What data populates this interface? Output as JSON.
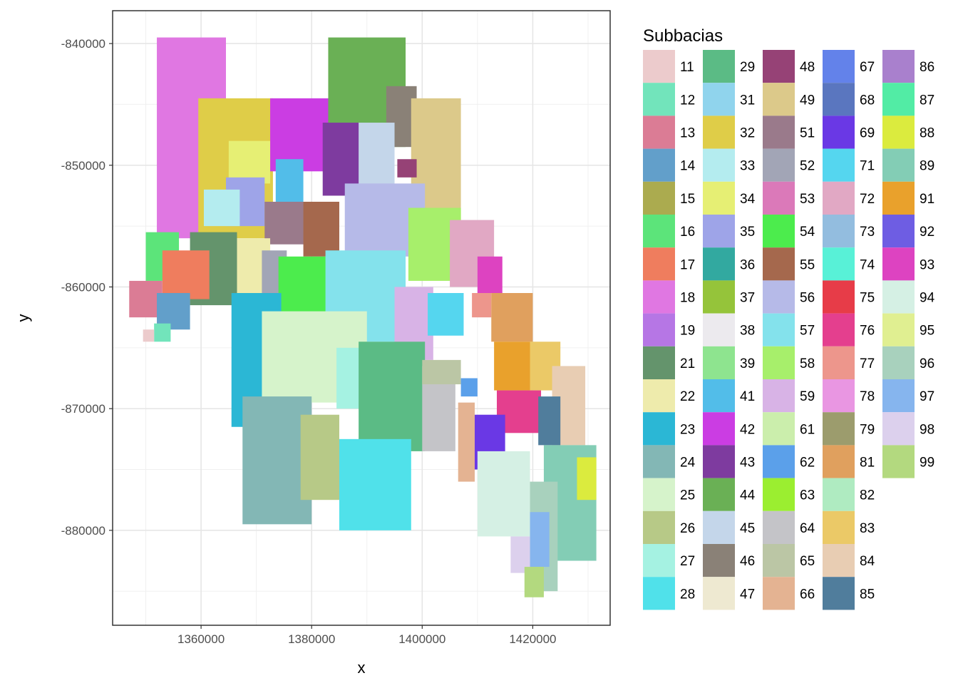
{
  "chart_data": {
    "type": "raster-map",
    "xlabel": "x",
    "ylabel": "y",
    "xlim": [
      1344000,
      1434000
    ],
    "ylim": [
      -887800,
      -837300
    ],
    "x_ticks": [
      1360000,
      1380000,
      1400000,
      1420000
    ],
    "x_tick_labels": [
      "1360000",
      "1380000",
      "1400000",
      "1420000"
    ],
    "y_ticks": [
      -840000,
      -850000,
      -860000,
      -870000,
      -880000
    ],
    "y_tick_labels": [
      "-840000",
      "-850000",
      "-860000",
      "-870000",
      "-880000"
    ],
    "grid": true,
    "legend": {
      "title": "Subbacias",
      "placement": "right",
      "columns": 5,
      "entries": [
        {
          "label": "11",
          "color": "#eccbcc"
        },
        {
          "label": "12",
          "color": "#72e4bb"
        },
        {
          "label": "13",
          "color": "#db7c95"
        },
        {
          "label": "14",
          "color": "#629fca"
        },
        {
          "label": "15",
          "color": "#abab4f"
        },
        {
          "label": "16",
          "color": "#5ce47a"
        },
        {
          "label": "17",
          "color": "#ef7d5e"
        },
        {
          "label": "18",
          "color": "#e077e2"
        },
        {
          "label": "19",
          "color": "#b676e5"
        },
        {
          "label": "21",
          "color": "#64946c"
        },
        {
          "label": "22",
          "color": "#eeebac"
        },
        {
          "label": "23",
          "color": "#2bb7d5"
        },
        {
          "label": "24",
          "color": "#83b7b5"
        },
        {
          "label": "25",
          "color": "#d6f3cb"
        },
        {
          "label": "26",
          "color": "#b7c987"
        },
        {
          "label": "27",
          "color": "#a5f2e2"
        },
        {
          "label": "28",
          "color": "#50e1ea"
        },
        {
          "label": "29",
          "color": "#5bbb85"
        },
        {
          "label": "31",
          "color": "#90d4ed"
        },
        {
          "label": "32",
          "color": "#dfcd48"
        },
        {
          "label": "33",
          "color": "#b4ecef"
        },
        {
          "label": "34",
          "color": "#e6ef74"
        },
        {
          "label": "35",
          "color": "#9ea4e8"
        },
        {
          "label": "36",
          "color": "#32a9a0"
        },
        {
          "label": "37",
          "color": "#95c43a"
        },
        {
          "label": "38",
          "color": "#eceaee"
        },
        {
          "label": "39",
          "color": "#8ee48f"
        },
        {
          "label": "41",
          "color": "#52bde9"
        },
        {
          "label": "42",
          "color": "#cb3de3"
        },
        {
          "label": "43",
          "color": "#7e3b9f"
        },
        {
          "label": "44",
          "color": "#6ab055"
        },
        {
          "label": "45",
          "color": "#c4d6ea"
        },
        {
          "label": "46",
          "color": "#8a8177"
        },
        {
          "label": "47",
          "color": "#eee9d1"
        },
        {
          "label": "48",
          "color": "#964276"
        },
        {
          "label": "49",
          "color": "#dcc98a"
        },
        {
          "label": "51",
          "color": "#9a7a8b"
        },
        {
          "label": "52",
          "color": "#a2a5b6"
        },
        {
          "label": "53",
          "color": "#db79b9"
        },
        {
          "label": "54",
          "color": "#4cec4d"
        },
        {
          "label": "55",
          "color": "#a5684d"
        },
        {
          "label": "56",
          "color": "#b6bae8"
        },
        {
          "label": "57",
          "color": "#84e2ec"
        },
        {
          "label": "58",
          "color": "#a7ef6b"
        },
        {
          "label": "59",
          "color": "#d8b3e6"
        },
        {
          "label": "61",
          "color": "#cbeeac"
        },
        {
          "label": "62",
          "color": "#5ba0ea"
        },
        {
          "label": "63",
          "color": "#9bee30"
        },
        {
          "label": "64",
          "color": "#c4c4c8"
        },
        {
          "label": "65",
          "color": "#bbc6a5"
        },
        {
          "label": "66",
          "color": "#e4b392"
        },
        {
          "label": "67",
          "color": "#6382ea"
        },
        {
          "label": "68",
          "color": "#5a76bf"
        },
        {
          "label": "69",
          "color": "#6a38e5"
        },
        {
          "label": "71",
          "color": "#55d6ef"
        },
        {
          "label": "72",
          "color": "#e1a8c4"
        },
        {
          "label": "73",
          "color": "#93bddf"
        },
        {
          "label": "74",
          "color": "#58f1d7"
        },
        {
          "label": "75",
          "color": "#e73c48"
        },
        {
          "label": "76",
          "color": "#e43f8e"
        },
        {
          "label": "77",
          "color": "#ed968c"
        },
        {
          "label": "78",
          "color": "#e996e2"
        },
        {
          "label": "79",
          "color": "#9c9c6d"
        },
        {
          "label": "81",
          "color": "#e0a05e"
        },
        {
          "label": "82",
          "color": "#afebc1"
        },
        {
          "label": "83",
          "color": "#ebc967"
        },
        {
          "label": "84",
          "color": "#e8cdb3"
        },
        {
          "label": "85",
          "color": "#507d9c"
        },
        {
          "label": "86",
          "color": "#a980cd"
        },
        {
          "label": "87",
          "color": "#52eca5"
        },
        {
          "label": "88",
          "color": "#dbeb3e"
        },
        {
          "label": "89",
          "color": "#83cdb5"
        },
        {
          "label": "91",
          "color": "#e9a12c"
        },
        {
          "label": "92",
          "color": "#6e5de3"
        },
        {
          "label": "93",
          "color": "#dd43c1"
        },
        {
          "label": "94",
          "color": "#d5f0e4"
        },
        {
          "label": "95",
          "color": "#e0ef91"
        },
        {
          "label": "96",
          "color": "#a8d1bd"
        },
        {
          "label": "97",
          "color": "#86b5ee"
        },
        {
          "label": "98",
          "color": "#dcd0ed"
        },
        {
          "label": "99",
          "color": "#b3d97f"
        }
      ]
    },
    "regions": [
      {
        "id": "18",
        "x": [
          1352000,
          1364500
        ],
        "y": [
          -856000,
          -839500
        ]
      },
      {
        "id": "32",
        "x": [
          1359500,
          1373000
        ],
        "y": [
          -856000,
          -844500
        ]
      },
      {
        "id": "42",
        "x": [
          1372500,
          1385000
        ],
        "y": [
          -850500,
          -844500
        ]
      },
      {
        "id": "44",
        "x": [
          1383000,
          1397000
        ],
        "y": [
          -848500,
          -839500
        ]
      },
      {
        "id": "46",
        "x": [
          1393500,
          1399000
        ],
        "y": [
          -848500,
          -843500
        ]
      },
      {
        "id": "49",
        "x": [
          1398000,
          1407000
        ],
        "y": [
          -856000,
          -844500
        ]
      },
      {
        "id": "43",
        "x": [
          1382000,
          1391500
        ],
        "y": [
          -852500,
          -846500
        ]
      },
      {
        "id": "45",
        "x": [
          1388500,
          1395000
        ],
        "y": [
          -852500,
          -846500
        ]
      },
      {
        "id": "48",
        "x": [
          1395500,
          1399000
        ],
        "y": [
          -851000,
          -849500
        ]
      },
      {
        "id": "34",
        "x": [
          1365000,
          1372500
        ],
        "y": [
          -851500,
          -848000
        ]
      },
      {
        "id": "35",
        "x": [
          1364500,
          1371500
        ],
        "y": [
          -855000,
          -851000
        ]
      },
      {
        "id": "33",
        "x": [
          1360500,
          1367000
        ],
        "y": [
          -855000,
          -852000
        ]
      },
      {
        "id": "41",
        "x": [
          1373500,
          1378500
        ],
        "y": [
          -853000,
          -849500
        ]
      },
      {
        "id": "51",
        "x": [
          1371500,
          1381500
        ],
        "y": [
          -856500,
          -853000
        ]
      },
      {
        "id": "55",
        "x": [
          1378500,
          1385000
        ],
        "y": [
          -857500,
          -853000
        ]
      },
      {
        "id": "56",
        "x": [
          1386000,
          1400500
        ],
        "y": [
          -857500,
          -851500
        ]
      },
      {
        "id": "58",
        "x": [
          1397500,
          1407000
        ],
        "y": [
          -859500,
          -853500
        ]
      },
      {
        "id": "72",
        "x": [
          1405000,
          1413000
        ],
        "y": [
          -860000,
          -854500
        ]
      },
      {
        "id": "21",
        "x": [
          1358000,
          1366500
        ],
        "y": [
          -861500,
          -855500
        ]
      },
      {
        "id": "16",
        "x": [
          1350000,
          1356000
        ],
        "y": [
          -859500,
          -855500
        ]
      },
      {
        "id": "17",
        "x": [
          1353000,
          1361500
        ],
        "y": [
          -861000,
          -857000
        ]
      },
      {
        "id": "13",
        "x": [
          1347000,
          1353000
        ],
        "y": [
          -862500,
          -859500
        ]
      },
      {
        "id": "14",
        "x": [
          1352000,
          1358000
        ],
        "y": [
          -863500,
          -860500
        ]
      },
      {
        "id": "12",
        "x": [
          1351500,
          1354500
        ],
        "y": [
          -864500,
          -863000
        ]
      },
      {
        "id": "11",
        "x": [
          1349500,
          1351500
        ],
        "y": [
          -864500,
          -863500
        ]
      },
      {
        "id": "22",
        "x": [
          1366500,
          1372500
        ],
        "y": [
          -861500,
          -856000
        ]
      },
      {
        "id": "52",
        "x": [
          1371000,
          1375500
        ],
        "y": [
          -861000,
          -857000
        ]
      },
      {
        "id": "54",
        "x": [
          1374000,
          1383000
        ],
        "y": [
          -863500,
          -857500
        ]
      },
      {
        "id": "57",
        "x": [
          1382500,
          1397000
        ],
        "y": [
          -864500,
          -857000
        ]
      },
      {
        "id": "59",
        "x": [
          1395000,
          1402000
        ],
        "y": [
          -866000,
          -860000
        ]
      },
      {
        "id": "71",
        "x": [
          1401000,
          1407500
        ],
        "y": [
          -864000,
          -860500
        ]
      },
      {
        "id": "93",
        "x": [
          1410000,
          1414500
        ],
        "y": [
          -860500,
          -857500
        ]
      },
      {
        "id": "77",
        "x": [
          1409000,
          1412500
        ],
        "y": [
          -862500,
          -860500
        ]
      },
      {
        "id": "81",
        "x": [
          1412500,
          1420000
        ],
        "y": [
          -864500,
          -860500
        ]
      },
      {
        "id": "23",
        "x": [
          1365500,
          1374500
        ],
        "y": [
          -871500,
          -860500
        ]
      },
      {
        "id": "25",
        "x": [
          1371000,
          1390000
        ],
        "y": [
          -869500,
          -862000
        ]
      },
      {
        "id": "27",
        "x": [
          1384500,
          1392000
        ],
        "y": [
          -870000,
          -865000
        ]
      },
      {
        "id": "29",
        "x": [
          1388500,
          1400500
        ],
        "y": [
          -873500,
          -864500
        ]
      },
      {
        "id": "64",
        "x": [
          1400000,
          1406000
        ],
        "y": [
          -873500,
          -866500
        ]
      },
      {
        "id": "65",
        "x": [
          1400000,
          1407000
        ],
        "y": [
          -868000,
          -866000
        ]
      },
      {
        "id": "91",
        "x": [
          1413000,
          1420000
        ],
        "y": [
          -868500,
          -864500
        ]
      },
      {
        "id": "83",
        "x": [
          1419500,
          1425000
        ],
        "y": [
          -868500,
          -864500
        ]
      },
      {
        "id": "84",
        "x": [
          1423500,
          1429500
        ],
        "y": [
          -873000,
          -866500
        ]
      },
      {
        "id": "76",
        "x": [
          1413500,
          1421500
        ],
        "y": [
          -872000,
          -868500
        ]
      },
      {
        "id": "62",
        "x": [
          1407000,
          1410000
        ],
        "y": [
          -869000,
          -867500
        ]
      },
      {
        "id": "69",
        "x": [
          1409000,
          1415000
        ],
        "y": [
          -875000,
          -870500
        ]
      },
      {
        "id": "66",
        "x": [
          1406500,
          1409500
        ],
        "y": [
          -876000,
          -869500
        ]
      },
      {
        "id": "85",
        "x": [
          1421000,
          1425000
        ],
        "y": [
          -873000,
          -869000
        ]
      },
      {
        "id": "24",
        "x": [
          1367500,
          1380000
        ],
        "y": [
          -879500,
          -869000
        ]
      },
      {
        "id": "26",
        "x": [
          1378000,
          1385000
        ],
        "y": [
          -877500,
          -870500
        ]
      },
      {
        "id": "28",
        "x": [
          1385000,
          1398000
        ],
        "y": [
          -880000,
          -872500
        ]
      },
      {
        "id": "94",
        "x": [
          1410000,
          1419500
        ],
        "y": [
          -880500,
          -873500
        ]
      },
      {
        "id": "89",
        "x": [
          1422000,
          1431500
        ],
        "y": [
          -882500,
          -873000
        ]
      },
      {
        "id": "88",
        "x": [
          1428000,
          1431500
        ],
        "y": [
          -877500,
          -874000
        ]
      },
      {
        "id": "96",
        "x": [
          1419500,
          1424500
        ],
        "y": [
          -885000,
          -876000
        ]
      },
      {
        "id": "97",
        "x": [
          1419500,
          1423000
        ],
        "y": [
          -883000,
          -878500
        ]
      },
      {
        "id": "98",
        "x": [
          1416000,
          1419500
        ],
        "y": [
          -883500,
          -880500
        ]
      },
      {
        "id": "99",
        "x": [
          1418500,
          1422000
        ],
        "y": [
          -885500,
          -883000
        ]
      }
    ]
  }
}
